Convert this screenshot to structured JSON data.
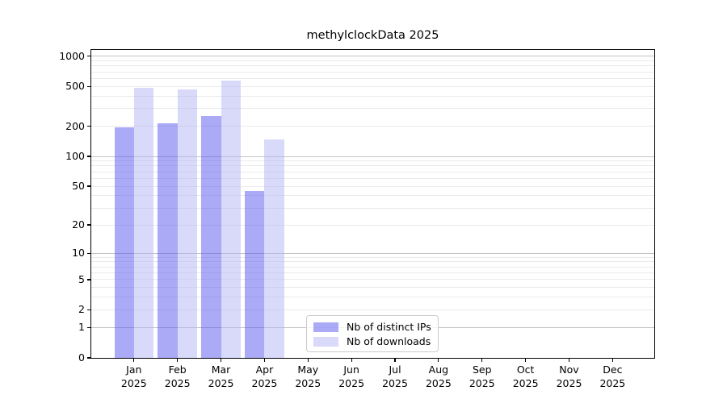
{
  "title": "methylclockData 2025",
  "chart_data": {
    "type": "bar",
    "title": "methylclockData 2025",
    "xlabel": "",
    "ylabel": "",
    "yscale": "log1p",
    "grid": true,
    "legend_position": "lower center-left inside plot",
    "categories": [
      "Jan",
      "Feb",
      "Mar",
      "Apr",
      "May",
      "Jun",
      "Jul",
      "Aug",
      "Sep",
      "Oct",
      "Nov",
      "Dec"
    ],
    "x_tick_year": "2025",
    "series": [
      {
        "name": "Nb of distinct IPs",
        "color": "rgba(85,85,240,0.5)",
        "values": [
          197,
          214,
          252,
          45,
          null,
          null,
          null,
          null,
          null,
          null,
          null,
          null
        ]
      },
      {
        "name": "Nb of downloads",
        "color": "rgba(180,180,245,0.5)",
        "values": [
          486,
          467,
          568,
          148,
          null,
          null,
          null,
          null,
          null,
          null,
          null,
          null
        ]
      }
    ],
    "yticks": [
      0,
      1,
      2,
      5,
      10,
      20,
      50,
      100,
      200,
      500,
      1000
    ],
    "major_gridlines": [
      1,
      10,
      100,
      1000
    ],
    "minor_gridlines": [
      2,
      3,
      4,
      5,
      6,
      7,
      8,
      9,
      20,
      30,
      40,
      50,
      60,
      70,
      80,
      90,
      200,
      300,
      400,
      500,
      600,
      700,
      800,
      900
    ],
    "ylim": [
      0,
      1155
    ]
  },
  "colors": {
    "distinct_ips_bar": "rgba(85,85,240,0.5)",
    "downloads_bar": "rgba(180,180,245,0.5)",
    "major_grid": "#c3c3c3",
    "minor_grid": "#eaeaea",
    "spine": "#000000",
    "legend_border": "#cccccc"
  }
}
